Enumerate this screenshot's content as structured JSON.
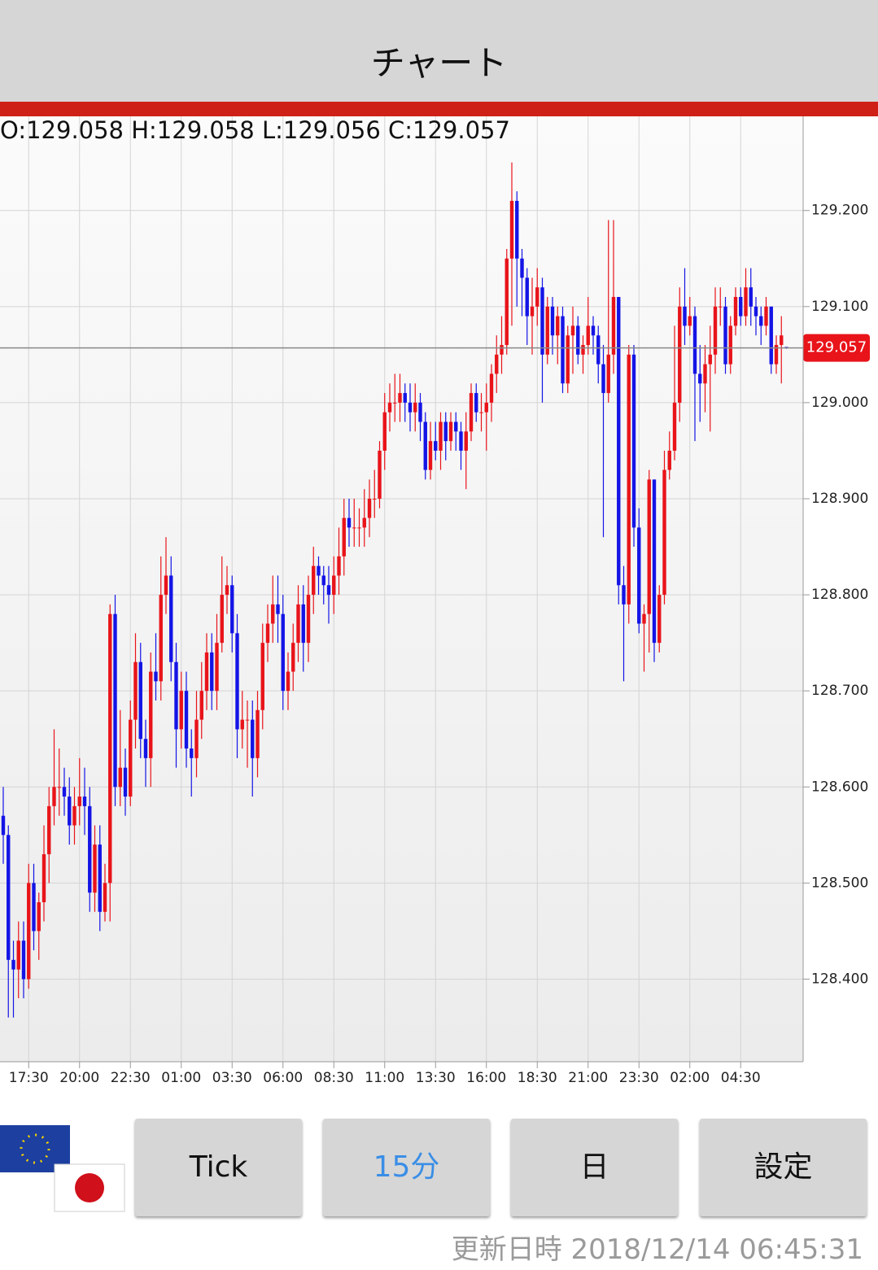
{
  "header": {
    "title": "チャート"
  },
  "chart_data": {
    "type": "candlestick",
    "ohlc_text": "O:129.058 H:129.058 L:129.056 C:129.057",
    "last_price": 129.057,
    "up_color": "#e8141a",
    "down_color": "#1414e6",
    "grid": true,
    "ylim": [
      128.314,
      129.298
    ],
    "yticks": [
      {
        "value": 128.4,
        "label": "128.400"
      },
      {
        "value": 128.5,
        "label": "128.500"
      },
      {
        "value": 128.6,
        "label": "128.600"
      },
      {
        "value": 128.7,
        "label": "128.700"
      },
      {
        "value": 128.8,
        "label": "128.800"
      },
      {
        "value": 128.9,
        "label": "128.900"
      },
      {
        "value": 129.0,
        "label": "129.000"
      },
      {
        "value": 129.1,
        "label": "129.100"
      },
      {
        "value": 129.2,
        "label": "129.200"
      }
    ],
    "categories": [
      null,
      null,
      null,
      null,
      null,
      "17:30",
      null,
      null,
      null,
      null,
      null,
      null,
      null,
      null,
      null,
      "20:00",
      null,
      null,
      null,
      null,
      null,
      null,
      null,
      null,
      null,
      "22:30",
      null,
      null,
      null,
      null,
      null,
      null,
      null,
      null,
      null,
      "01:00",
      null,
      null,
      null,
      null,
      null,
      null,
      null,
      null,
      null,
      "03:30",
      null,
      null,
      null,
      null,
      null,
      null,
      null,
      null,
      null,
      "06:00",
      null,
      null,
      null,
      null,
      null,
      null,
      null,
      null,
      null,
      "08:30",
      null,
      null,
      null,
      null,
      null,
      null,
      null,
      null,
      null,
      "11:00",
      null,
      null,
      null,
      null,
      null,
      null,
      null,
      null,
      null,
      "13:30",
      null,
      null,
      null,
      null,
      null,
      null,
      null,
      null,
      null,
      "16:00",
      null,
      null,
      null,
      null,
      null,
      null,
      null,
      null,
      null,
      "18:30",
      null,
      null,
      null,
      null,
      null,
      null,
      null,
      null,
      null,
      "21:00",
      null,
      null,
      null,
      null,
      null,
      null,
      null,
      null,
      null,
      "23:30",
      null,
      null,
      null,
      null,
      null,
      null,
      null,
      null,
      null,
      "02:00",
      null,
      null,
      null,
      null,
      null,
      null,
      null,
      null,
      null,
      "04:30",
      null,
      null,
      null,
      null,
      null,
      null,
      null,
      null,
      null
    ],
    "open": [
      128.57,
      128.55,
      128.42,
      128.41,
      128.44,
      128.4,
      128.5,
      128.45,
      128.48,
      128.53,
      128.58,
      128.6,
      128.6,
      128.59,
      128.56,
      128.58,
      128.59,
      128.58,
      128.49,
      128.54,
      128.47,
      128.5,
      128.78,
      128.6,
      128.62,
      128.59,
      128.67,
      128.73,
      128.65,
      128.63,
      128.72,
      128.71,
      128.8,
      128.82,
      128.73,
      128.66,
      128.7,
      128.64,
      128.63,
      128.67,
      128.7,
      128.74,
      128.7,
      128.75,
      128.8,
      128.81,
      128.76,
      128.66,
      128.67,
      128.67,
      128.63,
      128.68,
      128.75,
      128.77,
      128.79,
      128.78,
      128.7,
      128.72,
      128.75,
      128.79,
      128.75,
      128.8,
      128.83,
      128.82,
      128.81,
      128.8,
      128.82,
      128.84,
      128.88,
      128.87,
      128.87,
      128.87,
      128.88,
      128.9,
      128.9,
      128.95,
      128.99,
      129.0,
      129.0,
      129.01,
      129.0,
      128.99,
      129.0,
      128.98,
      128.93,
      128.96,
      128.95,
      128.98,
      128.96,
      128.98,
      128.97,
      128.95,
      128.97,
      129.01,
      128.99,
      128.99,
      129.0,
      129.03,
      129.05,
      129.06,
      129.15,
      129.21,
      129.15,
      129.13,
      129.09,
      129.1,
      129.12,
      129.05,
      129.1,
      129.07,
      129.09,
      129.02,
      129.07,
      129.08,
      129.05,
      129.06,
      129.08,
      129.07,
      129.04,
      129.01,
      129.05,
      129.11,
      128.81,
      128.79,
      129.05,
      128.87,
      128.77,
      128.78,
      128.92,
      128.75,
      128.8,
      128.93,
      128.95,
      129.0,
      129.1,
      129.08,
      129.09,
      129.03,
      129.02,
      129.04,
      129.05,
      129.1,
      129.1,
      129.04,
      129.08,
      129.11,
      129.09,
      129.12,
      129.1,
      129.09,
      129.08,
      129.1,
      129.04,
      129.06,
      129.058
    ],
    "high": [
      128.6,
      128.56,
      128.44,
      128.46,
      128.46,
      128.52,
      128.52,
      128.49,
      128.56,
      128.6,
      128.66,
      128.64,
      128.62,
      128.61,
      128.6,
      128.63,
      128.62,
      128.6,
      128.56,
      128.56,
      128.52,
      128.79,
      128.8,
      128.68,
      128.64,
      128.69,
      128.76,
      128.75,
      128.67,
      128.74,
      128.76,
      128.84,
      128.86,
      128.84,
      128.75,
      128.72,
      128.72,
      128.66,
      128.7,
      128.73,
      128.76,
      128.76,
      128.78,
      128.84,
      128.83,
      128.82,
      128.78,
      128.7,
      128.69,
      128.69,
      128.7,
      128.77,
      128.79,
      128.82,
      128.82,
      128.8,
      128.74,
      128.77,
      128.81,
      128.81,
      128.82,
      128.85,
      128.84,
      128.83,
      128.83,
      128.84,
      128.87,
      128.9,
      128.9,
      128.9,
      128.89,
      128.91,
      128.92,
      128.93,
      128.96,
      129.01,
      129.02,
      129.03,
      129.03,
      129.02,
      129.02,
      129.02,
      129.01,
      128.99,
      128.98,
      128.98,
      128.99,
      128.99,
      128.99,
      128.99,
      128.98,
      128.99,
      129.02,
      129.02,
      129.01,
      129.02,
      129.04,
      129.07,
      129.09,
      129.16,
      129.25,
      129.22,
      129.16,
      129.14,
      129.13,
      129.14,
      129.13,
      129.11,
      129.11,
      129.1,
      129.1,
      129.08,
      129.1,
      129.09,
      129.07,
      129.11,
      129.09,
      129.08,
      129.06,
      129.19,
      129.19,
      129.11,
      128.83,
      129.06,
      129.06,
      128.89,
      128.79,
      128.93,
      128.92,
      128.81,
      128.95,
      128.97,
      129.08,
      129.12,
      129.14,
      129.11,
      129.1,
      129.06,
      129.06,
      129.08,
      129.12,
      129.12,
      129.11,
      129.09,
      129.12,
      129.12,
      129.14,
      129.14,
      129.11,
      129.1,
      129.11,
      129.1,
      129.07,
      129.09,
      129.058
    ],
    "low": [
      128.52,
      128.36,
      128.36,
      128.38,
      128.38,
      128.39,
      128.43,
      128.42,
      128.46,
      128.5,
      128.56,
      128.57,
      128.57,
      128.54,
      128.54,
      128.56,
      128.55,
      128.47,
      128.47,
      128.45,
      128.46,
      128.46,
      128.58,
      128.58,
      128.57,
      128.58,
      128.64,
      128.63,
      128.6,
      128.6,
      128.69,
      128.69,
      128.78,
      128.71,
      128.62,
      128.64,
      128.62,
      128.59,
      128.61,
      128.65,
      128.68,
      128.68,
      128.68,
      128.74,
      128.78,
      128.74,
      128.63,
      128.64,
      128.62,
      128.59,
      128.61,
      128.66,
      128.73,
      128.75,
      128.75,
      128.68,
      128.68,
      128.7,
      128.73,
      128.72,
      128.73,
      128.78,
      128.8,
      128.79,
      128.77,
      128.78,
      128.8,
      128.82,
      128.85,
      128.85,
      128.85,
      128.85,
      128.86,
      128.88,
      128.89,
      128.93,
      128.97,
      128.98,
      128.98,
      128.98,
      128.97,
      128.97,
      128.96,
      128.92,
      128.92,
      128.94,
      128.93,
      128.94,
      128.95,
      128.95,
      128.93,
      128.91,
      128.96,
      128.98,
      128.97,
      128.95,
      128.98,
      129.01,
      129.03,
      129.05,
      129.08,
      129.1,
      129.09,
      129.06,
      129.05,
      129.08,
      129.0,
      129.04,
      129.05,
      129.04,
      129.01,
      129.01,
      129.03,
      129.04,
      129.03,
      129.05,
      129.05,
      129.02,
      128.86,
      129.0,
      129.03,
      128.79,
      128.71,
      128.77,
      128.85,
      128.76,
      128.72,
      128.74,
      128.73,
      128.74,
      128.79,
      128.92,
      128.94,
      128.98,
      129.06,
      129.07,
      128.96,
      128.98,
      128.99,
      128.97,
      129.03,
      129.08,
      129.03,
      129.03,
      129.07,
      129.08,
      129.08,
      129.08,
      129.07,
      129.06,
      129.07,
      129.03,
      129.03,
      129.02,
      129.056
    ],
    "close": [
      128.55,
      128.42,
      128.41,
      128.44,
      128.4,
      128.5,
      128.45,
      128.48,
      128.53,
      128.58,
      128.6,
      128.6,
      128.59,
      128.56,
      128.58,
      128.59,
      128.58,
      128.49,
      128.54,
      128.47,
      128.5,
      128.78,
      128.6,
      128.62,
      128.59,
      128.67,
      128.73,
      128.65,
      128.63,
      128.72,
      128.71,
      128.8,
      128.82,
      128.73,
      128.66,
      128.7,
      128.64,
      128.63,
      128.67,
      128.7,
      128.74,
      128.7,
      128.75,
      128.8,
      128.81,
      128.76,
      128.66,
      128.67,
      128.67,
      128.63,
      128.68,
      128.75,
      128.77,
      128.79,
      128.78,
      128.7,
      128.72,
      128.75,
      128.79,
      128.75,
      128.8,
      128.83,
      128.82,
      128.81,
      128.8,
      128.82,
      128.84,
      128.88,
      128.87,
      128.87,
      128.87,
      128.88,
      128.9,
      128.9,
      128.95,
      128.99,
      129.0,
      129.0,
      129.01,
      129.0,
      128.99,
      129.0,
      128.98,
      128.93,
      128.96,
      128.95,
      128.98,
      128.96,
      128.98,
      128.97,
      128.95,
      128.97,
      129.01,
      128.99,
      128.99,
      129.0,
      129.03,
      129.05,
      129.06,
      129.15,
      129.21,
      129.15,
      129.13,
      129.09,
      129.1,
      129.12,
      129.05,
      129.1,
      129.07,
      129.09,
      129.02,
      129.07,
      129.08,
      129.05,
      129.06,
      129.08,
      129.07,
      129.04,
      129.01,
      129.05,
      129.11,
      128.81,
      128.79,
      129.05,
      128.87,
      128.77,
      128.78,
      128.92,
      128.75,
      128.8,
      128.93,
      128.95,
      129.0,
      129.1,
      129.08,
      129.09,
      129.03,
      129.02,
      129.04,
      129.05,
      129.1,
      129.1,
      129.04,
      129.08,
      129.11,
      129.09,
      129.12,
      129.1,
      129.09,
      129.08,
      129.1,
      129.04,
      129.06,
      129.07,
      129.057
    ]
  },
  "buttons": [
    "Tick",
    "15分",
    "日",
    "設定"
  ],
  "selected_button": 1,
  "footer": {
    "updated": "更新日時 2018/12/14 06:45:31"
  }
}
